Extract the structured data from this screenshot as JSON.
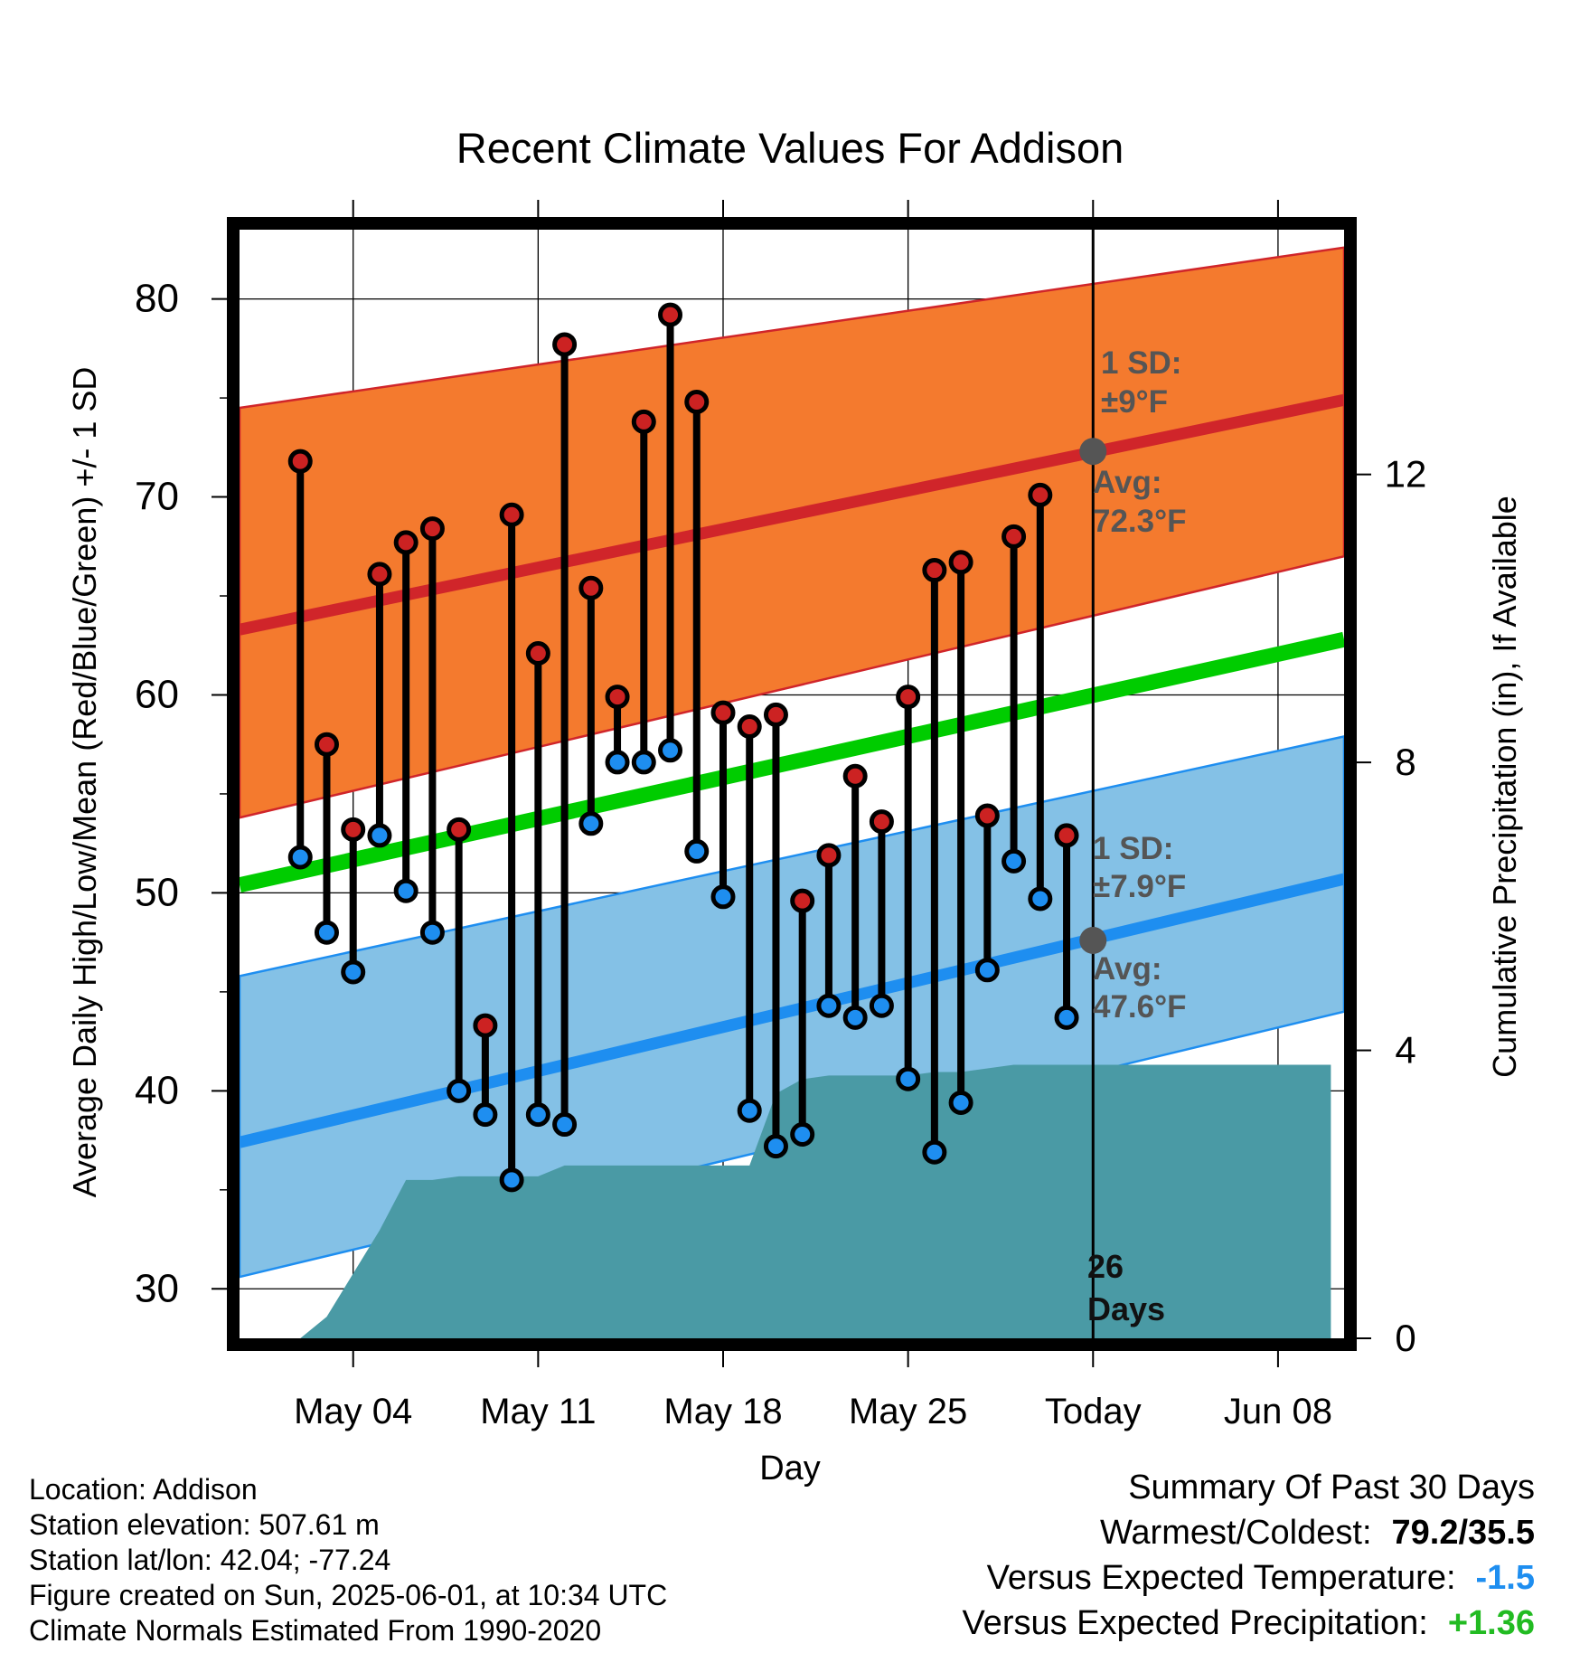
{
  "chart_data": {
    "type": "line",
    "title": "Recent Climate Values For Addison",
    "xlabel": "Day",
    "ylabel": "Average Daily High/Low/Mean (Red/Blue/Green) +/- 1 SD",
    "ylabel_right": "Cumulative Precipitation (in), If Available",
    "ylim": [
      27.5,
      83.5
    ],
    "ylim_right": [
      0,
      15.4
    ],
    "x_tick_labels": [
      "May 04",
      "May 11",
      "May 18",
      "May 25",
      "Today",
      "Jun 08"
    ],
    "y_tick_labels": [
      "30",
      "40",
      "50",
      "60",
      "70",
      "80"
    ],
    "y_right_tick_labels": [
      "0",
      "4",
      "8",
      "12"
    ],
    "grid": true,
    "highs": [
      71.8,
      57.5,
      53.2,
      66.1,
      67.7,
      68.4,
      53.2,
      43.3,
      69.1,
      62.1,
      77.7,
      65.4,
      59.9,
      73.8,
      79.2,
      74.8,
      59.1,
      58.4,
      59.0,
      49.6,
      51.9,
      55.9,
      53.6,
      59.9,
      66.3,
      66.7,
      53.9,
      68.0,
      70.1,
      52.9
    ],
    "lows": [
      51.8,
      48.0,
      46.0,
      52.9,
      50.1,
      48.0,
      40.0,
      38.8,
      35.5,
      38.8,
      38.3,
      53.5,
      56.6,
      56.6,
      57.2,
      52.1,
      49.8,
      39.0,
      37.2,
      37.8,
      44.3,
      43.7,
      44.3,
      40.6,
      36.9,
      39.4,
      46.1,
      51.6,
      49.7,
      43.7
    ],
    "normal_high": [
      63.3,
      74.9
    ],
    "normal_low": [
      37.4,
      50.7
    ],
    "normal_mean": [
      50.4,
      62.8
    ],
    "high_sd_band": {
      "upper": [
        74.5,
        82.6
      ],
      "lower": [
        53.8,
        67.0
      ]
    },
    "low_sd_band": {
      "upper": [
        45.8,
        57.9
      ],
      "lower": [
        30.6,
        44.0
      ]
    },
    "cumulative_precip": [
      0,
      0,
      0.3,
      0.9,
      1.5,
      2.2,
      2.2,
      2.25,
      2.25,
      2.25,
      2.25,
      2.4,
      2.4,
      2.4,
      2.4,
      2.4,
      2.4,
      2.4,
      2.4,
      3.4,
      3.6,
      3.65,
      3.65,
      3.65,
      3.65,
      3.7,
      3.7,
      3.75,
      3.8,
      3.8,
      3.8,
      3.8,
      3.8,
      3.8,
      3.8,
      3.8,
      3.8,
      3.8,
      3.8,
      3.8,
      3.8
    ]
  },
  "annotations": {
    "high_sd_label": "1 SD:",
    "high_sd_value": "±9°F",
    "high_avg_label": "Avg:",
    "high_avg_value": "72.3°F",
    "low_sd_label": "1 SD:",
    "low_sd_value": "±7.9°F",
    "low_avg_label": "Avg:",
    "low_avg_value": "47.6°F",
    "days_count": "26",
    "days_label": "Days"
  },
  "info": {
    "location": "Location: Addison",
    "elevation": "Station elevation: 507.61 m",
    "latlon": "Station lat/lon: 42.04; -77.24",
    "created": "Figure created on Sun, 2025-06-01, at 10:34 UTC",
    "normals": "Climate Normals Estimated From 1990-2020"
  },
  "summary": {
    "title": "Summary Of Past 30 Days",
    "warmest_coldest_label": "Warmest/Coldest:",
    "warmest_coldest_value": "79.2/35.5",
    "temp_label": "Versus Expected Temperature:",
    "temp_value": "-1.5",
    "precip_label": "Versus Expected Precipitation:",
    "precip_value": "+1.36"
  },
  "colors": {
    "high_band": "#f47a2e",
    "low_band": "#84c1e6",
    "normal_high": "#d0252a",
    "normal_low": "#1e8ef0",
    "normal_mean": "#00cc00",
    "precip": "#4a9aa5",
    "high_dot": "#cc2222",
    "low_dot": "#1e8ef0",
    "temp_anomaly": "#1e8ef0",
    "precip_anomaly": "#22bb22",
    "annotation": "#555555"
  }
}
